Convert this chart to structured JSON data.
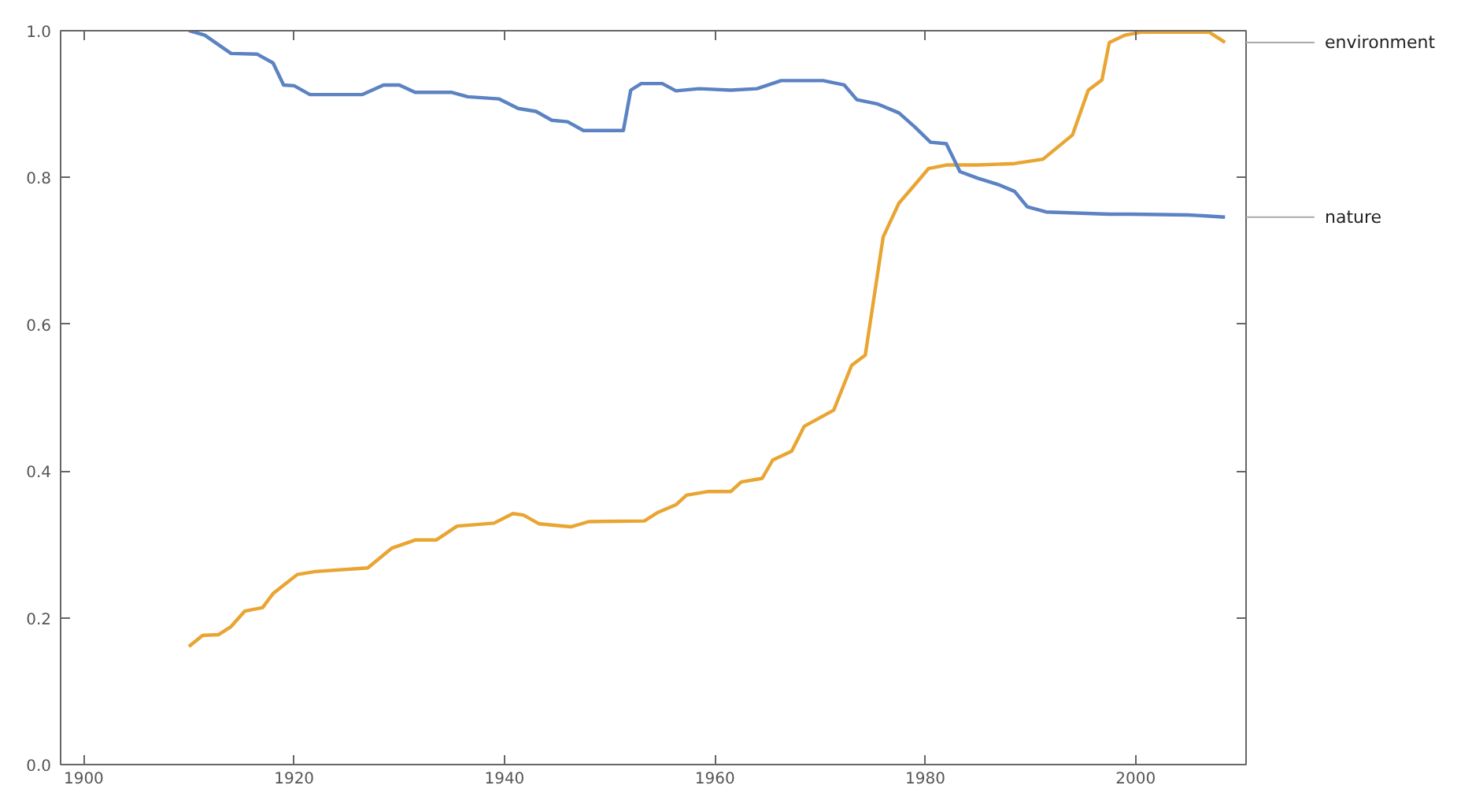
{
  "chart_data": {
    "type": "line",
    "xlim": [
      1897.8,
      2010.5
    ],
    "ylim": [
      0,
      1
    ],
    "xticks": [
      1900,
      1920,
      1940,
      1960,
      1980,
      2000
    ],
    "yticks": [
      {
        "value": 0,
        "label": "0.0"
      },
      0.2,
      0.4,
      0.6,
      0.8,
      {
        "value": 1,
        "label": "1.0"
      }
    ],
    "grid": false,
    "legend": false,
    "marker": "none",
    "line_style": "solid",
    "series": [
      {
        "name": "environment",
        "color": "#e9a532",
        "x": [
          1910,
          1911.3,
          1912.8,
          1914,
          1915.3,
          1917,
          1918,
          1920.3,
          1922,
          1927,
          1929.3,
          1931.5,
          1933.5,
          1935.5,
          1939,
          1940.8,
          1941.8,
          1943.3,
          1946.3,
          1948,
          1953.3,
          1954.5,
          1956.3,
          1957.3,
          1959.3,
          1961.5,
          1962.5,
          1964.5,
          1965.5,
          1967.3,
          1968.5,
          1971.3,
          1973,
          1974.3,
          1976,
          1977.5,
          1979,
          1980.3,
          1982,
          1985,
          1988.5,
          1991.2,
          1994,
          1995.5,
          1996.8,
          1997.5,
          1999,
          2000.5,
          2007,
          2008.5
        ],
        "values": [
          0.161,
          0.176,
          0.177,
          0.188,
          0.209,
          0.214,
          0.233,
          0.259,
          0.263,
          0.268,
          0.295,
          0.306,
          0.306,
          0.325,
          0.329,
          0.342,
          0.34,
          0.328,
          0.324,
          0.331,
          0.332,
          0.343,
          0.354,
          0.367,
          0.372,
          0.372,
          0.385,
          0.39,
          0.415,
          0.427,
          0.461,
          0.483,
          0.544,
          0.558,
          0.719,
          0.765,
          0.79,
          0.812,
          0.817,
          0.817,
          0.819,
          0.825,
          0.858,
          0.919,
          0.933,
          0.984,
          0.994,
          0.998,
          0.998,
          0.984
        ]
      },
      {
        "name": "nature",
        "color": "#5b82c2",
        "x": [
          1910,
          1911.5,
          1914,
          1916.5,
          1918,
          1919,
          1920,
          1921.5,
          1926.5,
          1928.5,
          1930,
          1931.5,
          1935,
          1936.5,
          1939.5,
          1941.3,
          1943,
          1944.5,
          1946,
          1947.5,
          1951.3,
          1952,
          1953,
          1955,
          1956.3,
          1958.5,
          1961.5,
          1964,
          1966.3,
          1970.3,
          1972.3,
          1973.5,
          1975.5,
          1977.5,
          1979,
          1980.5,
          1982,
          1983.3,
          1985,
          1987,
          1988.5,
          1989.7,
          1991.5,
          1997.5,
          1999.5,
          2005,
          2008.5
        ],
        "values": [
          1.0,
          0.994,
          0.969,
          0.968,
          0.956,
          0.926,
          0.925,
          0.913,
          0.913,
          0.926,
          0.926,
          0.916,
          0.916,
          0.91,
          0.907,
          0.894,
          0.89,
          0.878,
          0.876,
          0.864,
          0.864,
          0.919,
          0.928,
          0.928,
          0.918,
          0.921,
          0.919,
          0.921,
          0.932,
          0.932,
          0.926,
          0.906,
          0.9,
          0.888,
          0.869,
          0.848,
          0.846,
          0.808,
          0.799,
          0.79,
          0.781,
          0.76,
          0.753,
          0.75,
          0.75,
          0.749,
          0.746
        ]
      }
    ]
  }
}
